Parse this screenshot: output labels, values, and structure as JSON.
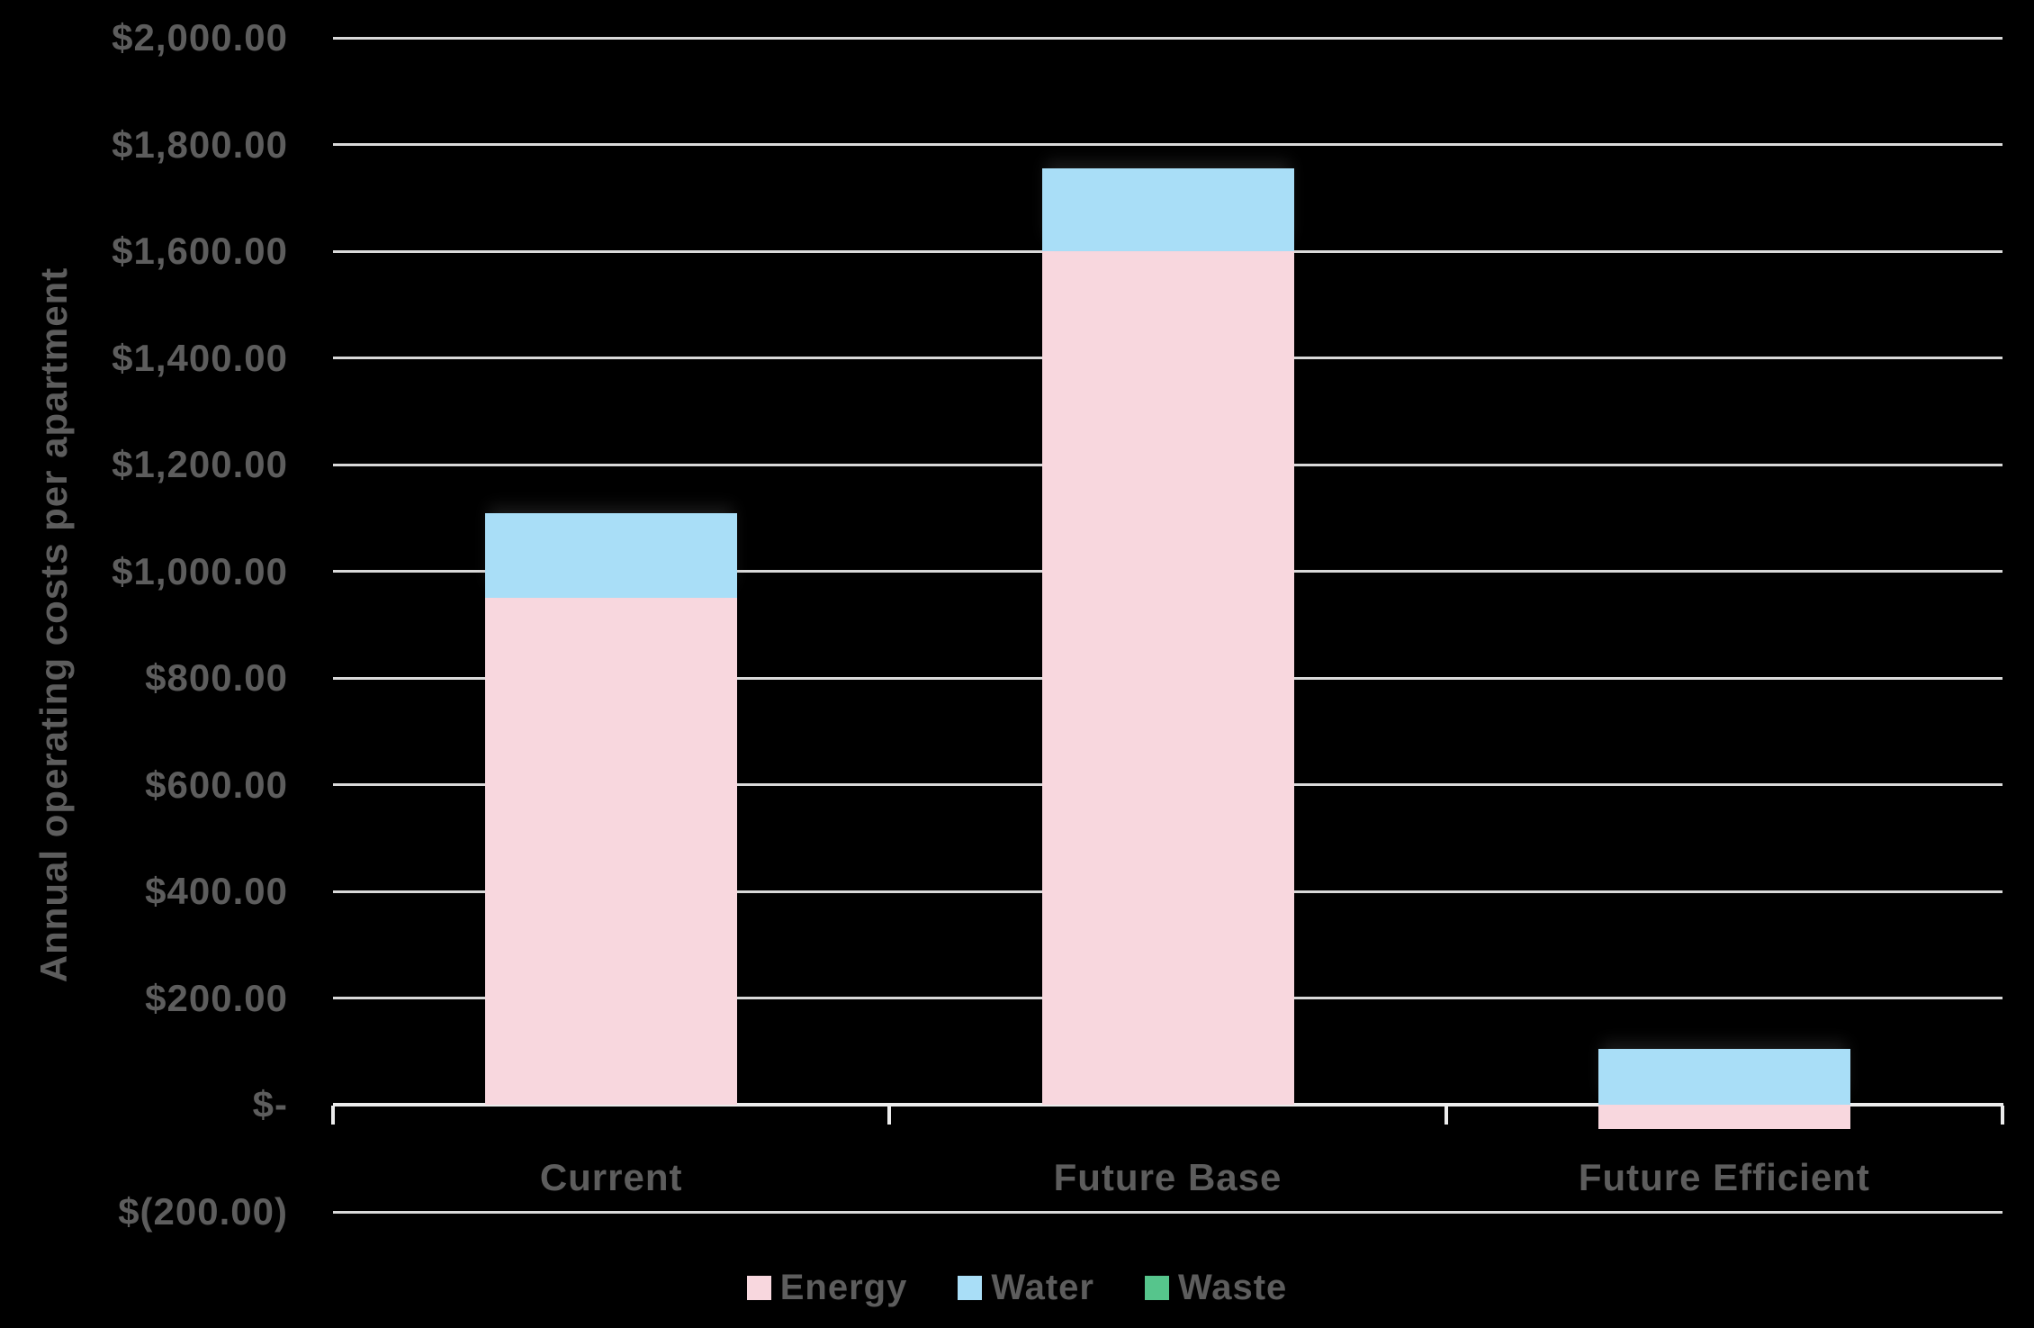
{
  "chart_data": {
    "type": "bar",
    "stacked": true,
    "title": "",
    "xlabel": "",
    "ylabel": "Annual operating costs per apartment",
    "categories": [
      "Current",
      "Future Base",
      "Future Efficient"
    ],
    "series": [
      {
        "name": "Energy",
        "color": "#f8d7de",
        "values": [
          950,
          1600,
          -45
        ]
      },
      {
        "name": "Water",
        "color": "#a9def7",
        "values": [
          160,
          155,
          105
        ]
      },
      {
        "name": "Waste",
        "color": "#56c58c",
        "values": [
          0,
          0,
          0
        ]
      }
    ],
    "category_totals": [
      1110,
      1755,
      60
    ],
    "ylim": [
      -200,
      2000
    ],
    "ytick_step": 200,
    "ytick_labels": [
      "$2,000.00",
      "$1,800.00",
      "$1,600.00",
      "$1,400.00",
      "$1,200.00",
      "$1,000.00",
      "$800.00",
      "$600.00",
      "$400.00",
      "$200.00",
      "$-",
      "$(200.00)"
    ],
    "grid": true,
    "legend_position": "bottom",
    "background": "#000000",
    "gridline_color": "#d9d9d9",
    "axis_color": "#ececec",
    "text_color": "#5d5d5d"
  }
}
